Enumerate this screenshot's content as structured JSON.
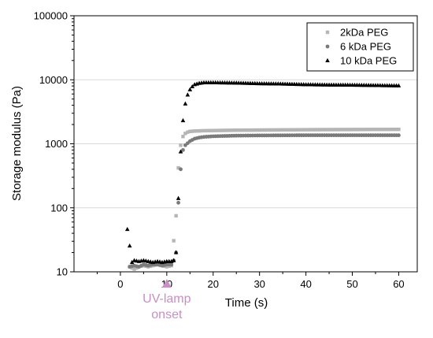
{
  "chart_data": {
    "type": "scatter",
    "xlabel": "Time (s)",
    "ylabel": "Storage modulus (Pa)",
    "xlim": [
      -10,
      64
    ],
    "ylim": [
      10,
      100000
    ],
    "yscale": "log",
    "xticks": [
      "0",
      "10",
      "20",
      "30",
      "40",
      "50",
      "60"
    ],
    "yticks": [
      "10",
      "100",
      "1000",
      "10000",
      "100000"
    ],
    "grid": "horizontal",
    "legend_position": "top-right",
    "annotation": {
      "line1": "UV-lamp",
      "line2": "onset",
      "x": 10,
      "color": "#c98fc4"
    },
    "series": [
      {
        "name": "2kDa PEG",
        "marker": "square",
        "color": "#b5b5b5",
        "x": [
          2,
          3,
          4,
          5,
          6,
          7,
          8,
          9,
          10,
          11,
          12,
          12.5,
          13,
          13.5,
          14,
          14.5,
          15,
          16,
          17,
          18,
          20,
          25,
          30,
          35,
          40,
          45,
          50,
          55,
          60
        ],
        "y": [
          12,
          11,
          12,
          12.5,
          12,
          12.5,
          13,
          12.5,
          12,
          12.5,
          75,
          420,
          950,
          1300,
          1450,
          1520,
          1560,
          1580,
          1590,
          1600,
          1610,
          1630,
          1640,
          1650,
          1660,
          1665,
          1670,
          1675,
          1680
        ]
      },
      {
        "name": "6 kDa PEG",
        "marker": "circle",
        "color": "#7a7a7a",
        "x": [
          2,
          3,
          4,
          5,
          6,
          7,
          8,
          9,
          10,
          11,
          11.5,
          12,
          12.5,
          13,
          13.5,
          14,
          15,
          16,
          17,
          18,
          20,
          25,
          30,
          35,
          40,
          45,
          50,
          55,
          60
        ],
        "y": [
          12,
          12.5,
          12,
          13,
          12.5,
          13,
          13,
          12.5,
          13,
          13,
          15,
          20,
          120,
          400,
          800,
          950,
          1100,
          1200,
          1250,
          1280,
          1310,
          1340,
          1350,
          1355,
          1360,
          1360,
          1360,
          1360,
          1360
        ]
      },
      {
        "name": "10 kDa PEG",
        "marker": "triangle",
        "color": "#000000",
        "x": [
          1.5,
          2.5,
          3,
          4,
          5,
          6,
          7,
          8,
          9,
          10,
          11,
          11.5,
          12,
          12.5,
          13,
          13.5,
          14,
          14.5,
          15,
          15.5,
          16,
          17,
          18,
          20,
          25,
          30,
          35,
          40,
          45,
          50,
          55,
          60
        ],
        "y": [
          46,
          14,
          15,
          14.5,
          15,
          14.5,
          14,
          14.5,
          14,
          14.5,
          14.5,
          15,
          20,
          140,
          750,
          2300,
          4200,
          5800,
          7000,
          7800,
          8400,
          8800,
          9000,
          9000,
          8900,
          8700,
          8600,
          8400,
          8300,
          8250,
          8150,
          8050
        ]
      }
    ]
  }
}
